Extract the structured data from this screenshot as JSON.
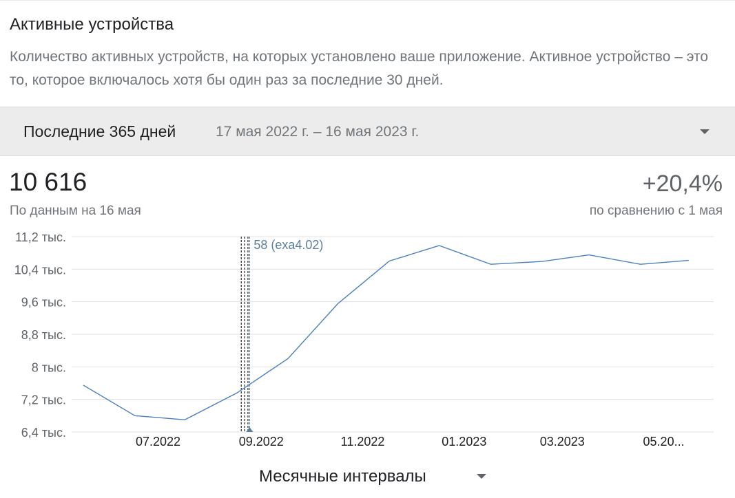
{
  "card": {
    "title": "Активные устройства",
    "description": "Количество активных устройств, на которых установлено ваше приложение. Активное устройство – это то, которое включалось хотя бы один раз за последние 30 дней."
  },
  "range": {
    "label": "Последние 365 дней",
    "dates": "17 мая 2022 г. – 16 мая 2023 г."
  },
  "summary": {
    "value": "10 616",
    "as_of": "По данным на 16 мая",
    "change": "+20,4%",
    "compare": "по сравнению с 1 мая"
  },
  "interval": {
    "label": "Месячные интервалы"
  },
  "colors": {
    "line": "#4a7fc1",
    "grid": "#e0e0e0",
    "marker": "#5a7f9a",
    "release": "#333333"
  },
  "chart_data": {
    "type": "line",
    "y_tick_labels": [
      "11,2 тыс.",
      "10,4 тыс.",
      "9,6 тыс.",
      "8,8 тыс.",
      "8 тыс.",
      "7,2 тыс.",
      "6,4 тыс."
    ],
    "y_ticks": [
      11200,
      10400,
      9600,
      8800,
      8000,
      7200,
      6400
    ],
    "ylim": [
      6400,
      11200
    ],
    "x_tick_labels": [
      "07.2022",
      "09.2022",
      "11.2022",
      "01.2023",
      "03.2023",
      "05.20..."
    ],
    "x_tick_dates": [
      "2022-07-01",
      "2022-09-01",
      "2022-11-01",
      "2023-01-01",
      "2023-03-01",
      "2023-05-01"
    ],
    "xlim": [
      "2022-05-10",
      "2023-05-31"
    ],
    "grid": true,
    "series": [
      {
        "x": [
          "2022-05-17",
          "2022-06-17",
          "2022-07-17",
          "2022-08-17",
          "2022-09-17",
          "2022-10-17",
          "2022-11-17",
          "2022-12-17",
          "2023-01-17",
          "2023-02-17",
          "2023-03-17",
          "2023-04-17",
          "2023-05-16"
        ],
        "values": [
          7550,
          6800,
          6700,
          7350,
          8200,
          9550,
          10600,
          10980,
          10520,
          10590,
          10750,
          10520,
          10616
        ]
      }
    ],
    "annotation": {
      "label": "58 (exa4.02)",
      "date": "2022-08-25",
      "release_dates": [
        "2022-08-20",
        "2022-08-22",
        "2022-08-24"
      ]
    }
  }
}
